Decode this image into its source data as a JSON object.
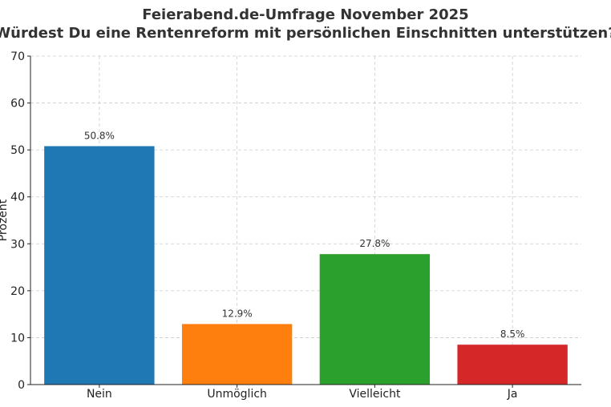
{
  "chart_data": {
    "type": "bar",
    "title": "Feierabend.de-Umfrage November 2025",
    "subtitle": "Würdest Du eine Rentenreform mit persönlichen Einschnitten unterstützen?",
    "xlabel": "",
    "ylabel": "Prozent",
    "categories": [
      "Nein",
      "Unmöglich",
      "Vielleicht",
      "Ja"
    ],
    "values": [
      50.8,
      12.9,
      27.8,
      8.5
    ],
    "data_labels": [
      "50.8%",
      "12.9%",
      "27.8%",
      "8.5%"
    ],
    "colors": [
      "#1f77b4",
      "#ff7f0e",
      "#2ca02c",
      "#d62728"
    ],
    "ylim": [
      0,
      70
    ],
    "yticks": [
      0,
      10,
      20,
      30,
      40,
      50,
      60,
      70
    ],
    "grid": true,
    "legend": "none"
  }
}
